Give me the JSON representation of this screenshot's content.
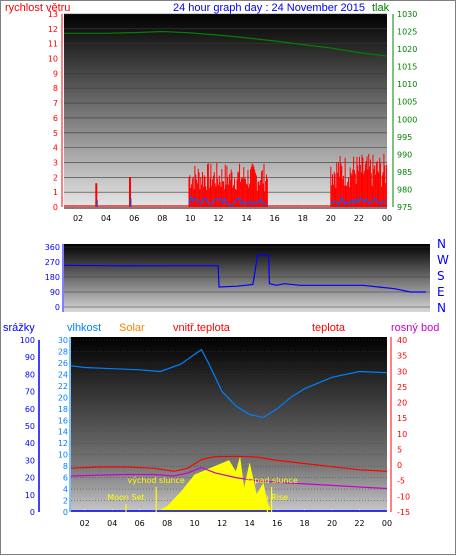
{
  "header": {
    "wind_label": "rychlost větru",
    "title": "24 hour graph day : 24 November 2015",
    "pressure_label": "tlak"
  },
  "wind_dir_labels": [
    "N",
    "W",
    "S",
    "E",
    "N"
  ],
  "bottom_labels": {
    "rain": "srážky",
    "humidity": "vlhkost",
    "solar": "Solar",
    "indoor_temp": "vnitř.teplota",
    "temp": "teplota",
    "dew": "rosný bod"
  },
  "annotations": {
    "sunrise": "východ slunce",
    "sunset": "západ slunce",
    "moonset": "Moon Set",
    "moonrise": "Moon Rise"
  },
  "colors": {
    "wind": "#ff0000",
    "wind_avg": "#0060ff",
    "pressure": "#008000",
    "direction": "#0000ff",
    "rain": "#0000ff",
    "humidity": "#0080ff",
    "solar": "#ffff00",
    "indoor_temp": "#ff0000",
    "temp": "#ff0000",
    "dew": "#cc00cc",
    "blue_text": "#0000ff",
    "orange_text": "#ff8000",
    "magenta_text": "#cc00cc"
  },
  "chart_data": [
    {
      "type": "area",
      "title": "24 hour graph day : 24 November 2015",
      "x_ticks": [
        "02",
        "04",
        "06",
        "08",
        "10",
        "12",
        "14",
        "16",
        "18",
        "20",
        "22",
        "00"
      ],
      "x_range": [
        1,
        24
      ],
      "series": [
        {
          "name": "rychlost větru",
          "axis": "left",
          "ylim": [
            0,
            13
          ],
          "y_ticks": [
            0,
            1,
            2,
            3,
            4,
            5,
            6,
            7,
            8,
            9,
            10,
            11,
            12,
            13
          ],
          "bursts": [
            {
              "x": 3.3,
              "peak": 1.6
            },
            {
              "x": 5.7,
              "peak": 2.0
            },
            {
              "x_start": 9.9,
              "x_end": 15.5,
              "peak": 3.0
            },
            {
              "x_start": 20.0,
              "x_end": 24.0,
              "peak": 3.6
            }
          ]
        },
        {
          "name": "tlak",
          "axis": "right",
          "ylim": [
            975,
            1030
          ],
          "y_ticks": [
            975,
            980,
            985,
            990,
            995,
            1000,
            1005,
            1010,
            1015,
            1020,
            1025,
            1030
          ],
          "x": [
            1,
            4,
            6,
            8,
            10,
            12,
            14,
            16,
            18,
            20,
            22,
            24
          ],
          "values": [
            1024.5,
            1024.5,
            1024.7,
            1025.0,
            1024.6,
            1024.0,
            1023.2,
            1022.3,
            1021.3,
            1020.3,
            1019.0,
            1018.0
          ]
        }
      ]
    },
    {
      "type": "line",
      "ylim": [
        0,
        360
      ],
      "y_ticks": [
        0,
        90,
        180,
        270,
        360
      ],
      "x": [
        1,
        4,
        6,
        8,
        10.8,
        10.85,
        12,
        13,
        13.3,
        14.0,
        14.05,
        14.5,
        15.0,
        16,
        18,
        20,
        22,
        23,
        24
      ],
      "values": [
        250,
        248,
        247,
        248,
        248,
        120,
        125,
        135,
        310,
        310,
        140,
        130,
        140,
        130,
        130,
        130,
        110,
        90,
        90
      ]
    },
    {
      "type": "line",
      "x_ticks": [
        "02",
        "04",
        "06",
        "08",
        "10",
        "12",
        "14",
        "16",
        "18",
        "20",
        "22",
        "00"
      ],
      "x_range": [
        1,
        24
      ],
      "series": [
        {
          "name": "srážky",
          "axis": "far-left",
          "ylim": [
            0,
            100
          ],
          "y_ticks": [
            0,
            10,
            20,
            30,
            40,
            50,
            60,
            70,
            80,
            90,
            100
          ],
          "x": [
            1,
            24
          ],
          "values": [
            0,
            0
          ]
        },
        {
          "name": "vlhkost",
          "axis": "left",
          "ylim": [
            0,
            30
          ],
          "y_ticks": [
            0,
            2,
            4,
            6,
            8,
            10,
            12,
            14,
            16,
            18,
            20,
            22,
            24,
            26,
            28,
            30
          ],
          "x": [
            1,
            2,
            4,
            6,
            7.5,
            9,
            10,
            10.5,
            11,
            12,
            13,
            14,
            15,
            16,
            17,
            18,
            20,
            22,
            24
          ],
          "values": [
            25.5,
            25.2,
            25.0,
            24.8,
            24.5,
            25.8,
            27.5,
            28.3,
            26.0,
            21.0,
            18.5,
            17.0,
            16.5,
            18.0,
            20.0,
            21.5,
            23.5,
            24.5,
            24.3
          ]
        },
        {
          "name": "teplota",
          "axis": "right",
          "ylim": [
            -15,
            40
          ],
          "y_ticks": [
            -15,
            -10,
            -5,
            0,
            5,
            10,
            15,
            20,
            25,
            30,
            35,
            40
          ],
          "x": [
            1,
            3,
            5,
            7,
            8.5,
            9.5,
            10.5,
            11.5,
            13,
            14.5,
            16,
            18,
            20,
            22,
            24
          ],
          "values": [
            -1.0,
            -0.6,
            -0.6,
            -1.0,
            -2.0,
            -1.0,
            1.8,
            2.7,
            2.8,
            2.6,
            1.5,
            0.5,
            -0.5,
            -1.5,
            -2.0
          ]
        },
        {
          "name": "rosný bod",
          "axis": "right",
          "ylim": [
            -15,
            40
          ],
          "y_ticks": [
            -15,
            -10,
            -5,
            0,
            5,
            10,
            15,
            20,
            25,
            30,
            35,
            40
          ],
          "x": [
            1,
            3,
            5,
            7,
            8.5,
            9.5,
            10.5,
            11.5,
            13,
            14.5,
            16,
            18,
            20,
            22,
            24
          ],
          "values": [
            -3.5,
            -3.2,
            -3.0,
            -3.0,
            -3.5,
            -2.5,
            -0.8,
            -2.5,
            -4.0,
            -5.0,
            -5.5,
            -6.0,
            -6.5,
            -7.0,
            -7.5
          ]
        },
        {
          "name": "Solar",
          "axis": "left",
          "ylim": [
            0,
            30
          ],
          "x": [
            7.2,
            8,
            9,
            10,
            10.5,
            11,
            11.5,
            12,
            12.5,
            13,
            13.3,
            13.6,
            14,
            14.5,
            15,
            15.3,
            15.6
          ],
          "values": [
            0,
            1.0,
            3.5,
            6.5,
            7.0,
            7.5,
            8.0,
            8.5,
            9.0,
            7.0,
            9.5,
            4.0,
            8.5,
            3.0,
            5.0,
            1.5,
            0
          ]
        }
      ],
      "annotations": [
        {
          "text": "východ slunce",
          "x": 7.2
        },
        {
          "text": "západ slunce",
          "x": 15.6
        },
        {
          "text": "Moon Set",
          "x": 5.0
        },
        {
          "text": "Moon Rise",
          "x": 15.3
        }
      ]
    }
  ]
}
